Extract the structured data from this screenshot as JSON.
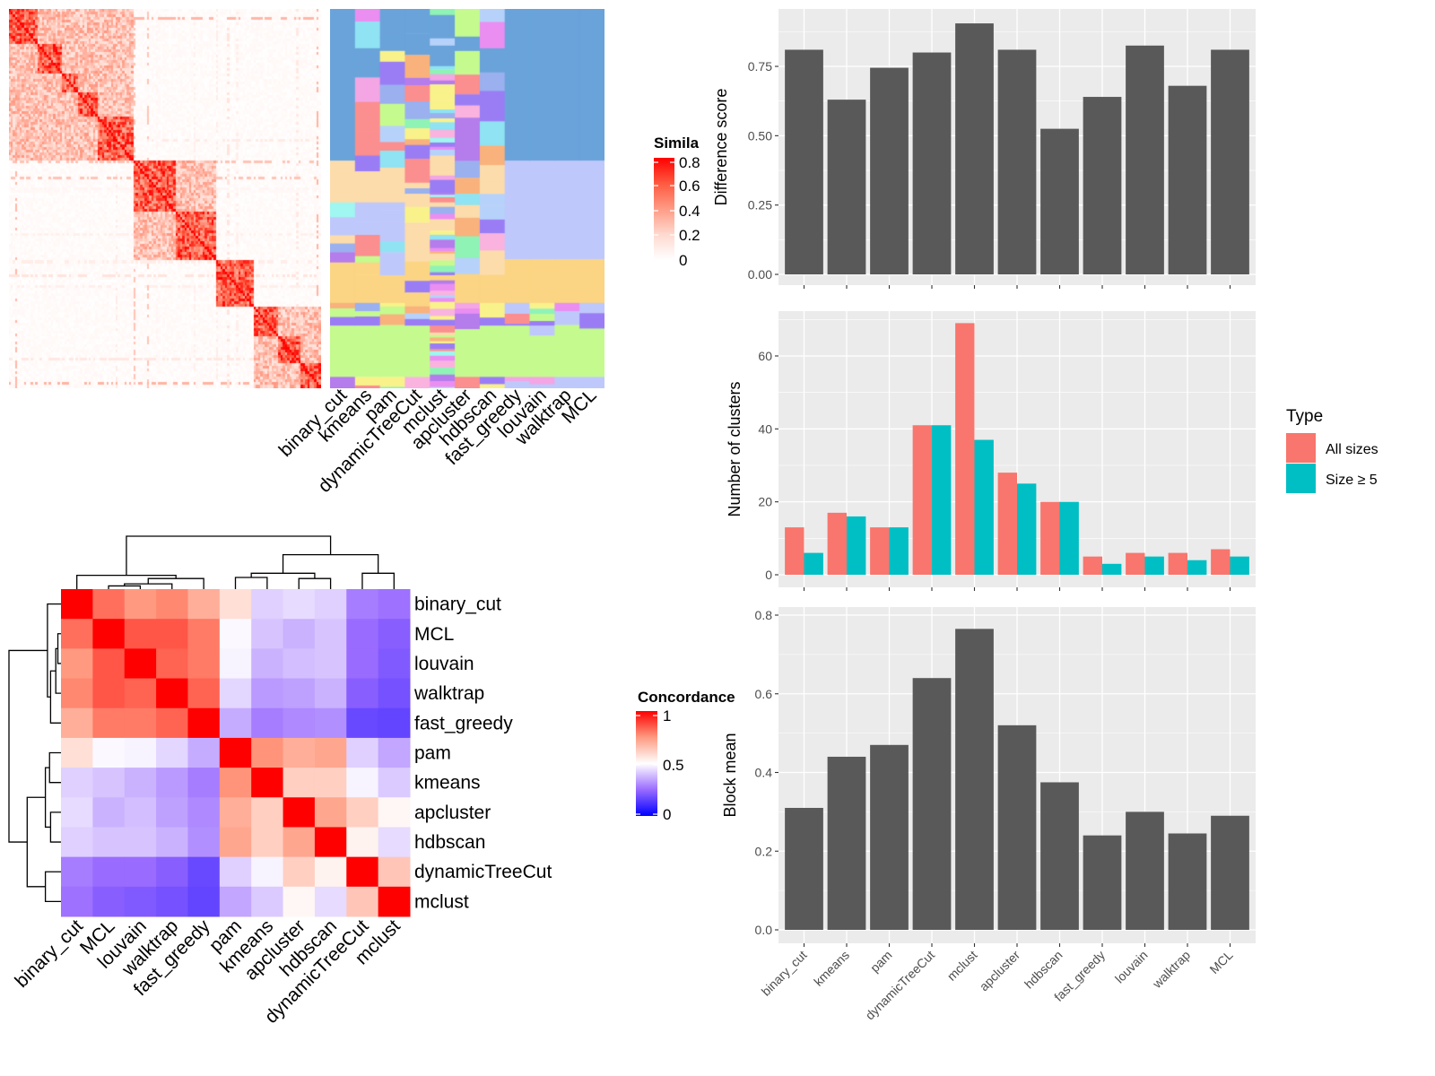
{
  "chart_data": [
    {
      "type": "heatmap",
      "id": "similarity",
      "legend_title": "Simila",
      "legend_ticks": [
        "0",
        "0.2",
        "0.4",
        "0.6",
        "0.8"
      ],
      "value_range": [
        0,
        0.8
      ],
      "colors": {
        "low": "#ffffff",
        "high": "#ff0000"
      }
    },
    {
      "type": "heatmap",
      "id": "cluster-labels",
      "columns": [
        "binary_cut",
        "kmeans",
        "pam",
        "dynamicTreeCut",
        "mclust",
        "apcluster",
        "hdbscan",
        "fast_greedy",
        "louvain",
        "walktrap",
        "MCL"
      ]
    },
    {
      "type": "heatmap",
      "id": "concordance",
      "legend_title": "Concordance",
      "legend_ticks": [
        "0",
        "0.5",
        "1"
      ],
      "value_range": [
        0,
        1
      ],
      "colors": {
        "low": "#0000ff",
        "mid": "#ffffff",
        "high": "#ff0000"
      },
      "rows": [
        "binary_cut",
        "MCL",
        "louvain",
        "walktrap",
        "fast_greedy",
        "pam",
        "kmeans",
        "apcluster",
        "hdbscan",
        "dynamicTreeCut",
        "mclust"
      ],
      "columns": [
        "binary_cut",
        "MCL",
        "louvain",
        "walktrap",
        "fast_greedy",
        "pam",
        "kmeans",
        "apcluster",
        "hdbscan",
        "dynamicTreeCut",
        "mclust"
      ],
      "values": [
        [
          1.0,
          0.82,
          0.75,
          0.78,
          0.7,
          0.58,
          0.42,
          0.44,
          0.42,
          0.28,
          0.26
        ],
        [
          0.82,
          1.0,
          0.86,
          0.86,
          0.8,
          0.49,
          0.4,
          0.37,
          0.4,
          0.25,
          0.22
        ],
        [
          0.75,
          0.86,
          1.0,
          0.84,
          0.8,
          0.48,
          0.37,
          0.39,
          0.4,
          0.25,
          0.21
        ],
        [
          0.78,
          0.86,
          0.84,
          1.0,
          0.84,
          0.43,
          0.33,
          0.34,
          0.37,
          0.22,
          0.19
        ],
        [
          0.7,
          0.8,
          0.8,
          0.84,
          1.0,
          0.36,
          0.28,
          0.3,
          0.31,
          0.17,
          0.16
        ],
        [
          0.58,
          0.49,
          0.48,
          0.43,
          0.36,
          1.0,
          0.76,
          0.7,
          0.72,
          0.42,
          0.35
        ],
        [
          0.42,
          0.4,
          0.37,
          0.33,
          0.28,
          0.76,
          1.0,
          0.62,
          0.62,
          0.48,
          0.41
        ],
        [
          0.44,
          0.37,
          0.39,
          0.34,
          0.3,
          0.7,
          0.62,
          1.0,
          0.72,
          0.62,
          0.52
        ],
        [
          0.42,
          0.4,
          0.4,
          0.37,
          0.31,
          0.72,
          0.62,
          0.72,
          1.0,
          0.53,
          0.44
        ],
        [
          0.28,
          0.25,
          0.25,
          0.22,
          0.17,
          0.42,
          0.48,
          0.62,
          0.53,
          1.0,
          0.64
        ],
        [
          0.26,
          0.22,
          0.21,
          0.19,
          0.16,
          0.35,
          0.41,
          0.52,
          0.44,
          0.64,
          1.0
        ]
      ],
      "dendrogram": true
    },
    {
      "type": "bar",
      "id": "difference-score",
      "categories": [
        "binary_cut",
        "kmeans",
        "pam",
        "dynamicTreeCut",
        "mclust",
        "apcluster",
        "hdbscan",
        "fast_greedy",
        "louvain",
        "walktrap",
        "MCL"
      ],
      "values": [
        0.81,
        0.63,
        0.745,
        0.8,
        0.905,
        0.81,
        0.525,
        0.64,
        0.825,
        0.68,
        0.81
      ],
      "ylabel": "Difference score",
      "yticks": [
        "0.00",
        "0.25",
        "0.50",
        "0.75"
      ],
      "ylim": [
        0,
        0.95
      ],
      "color": "#595959",
      "grid": true
    },
    {
      "type": "bar",
      "id": "number-of-clusters",
      "categories": [
        "binary_cut",
        "kmeans",
        "pam",
        "dynamicTreeCut",
        "mclust",
        "apcluster",
        "hdbscan",
        "fast_greedy",
        "louvain",
        "walktrap",
        "MCL"
      ],
      "series": [
        {
          "name": "All sizes",
          "color": "#f8766d",
          "values": [
            13,
            17,
            13,
            41,
            69,
            28,
            20,
            5,
            6,
            6,
            7
          ]
        },
        {
          "name": "Size ≥ 5",
          "color": "#00bfc4",
          "values": [
            6,
            16,
            13,
            41,
            37,
            25,
            20,
            3,
            5,
            4,
            5
          ]
        }
      ],
      "ylabel": "Number of clusters",
      "yticks": [
        "0",
        "20",
        "40",
        "60"
      ],
      "ylim": [
        0,
        72.5
      ],
      "legend_title": "Type",
      "legend_position": "right",
      "grid": true
    },
    {
      "type": "bar",
      "id": "block-mean",
      "categories": [
        "binary_cut",
        "kmeans",
        "pam",
        "dynamicTreeCut",
        "mclust",
        "apcluster",
        "hdbscan",
        "fast_greedy",
        "louvain",
        "walktrap",
        "MCL"
      ],
      "values": [
        0.31,
        0.44,
        0.47,
        0.64,
        0.765,
        0.52,
        0.375,
        0.24,
        0.3,
        0.245,
        0.29
      ],
      "ylabel": "Block mean",
      "yticks": [
        "0.0",
        "0.2",
        "0.4",
        "0.6",
        "0.8"
      ],
      "ylim": [
        0,
        0.82
      ],
      "color": "#595959",
      "grid": true
    }
  ]
}
